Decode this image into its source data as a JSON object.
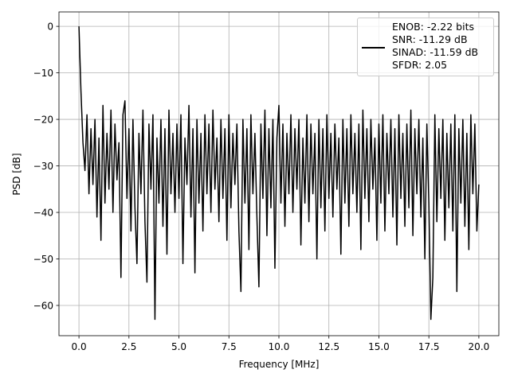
{
  "chart_data": {
    "type": "line",
    "xlabel": "Frequency [MHz]",
    "ylabel": "PSD [dB]",
    "xlim": [
      -1,
      21
    ],
    "ylim": [
      -66.5,
      3.1
    ],
    "xticks": [
      {
        "value": 0,
        "label": "0.0"
      },
      2.5,
      {
        "value": 5,
        "label": "5.0"
      },
      7.5,
      {
        "value": 10,
        "label": "10.0"
      },
      12.5,
      {
        "value": 15,
        "label": "15.0"
      },
      17.5,
      {
        "value": 20,
        "label": "20.0"
      }
    ],
    "yticks": [
      0,
      {
        "value": -10,
        "label": "−10"
      },
      {
        "value": -20,
        "label": "−20"
      },
      {
        "value": -30,
        "label": "−30"
      },
      {
        "value": -40,
        "label": "−40"
      },
      {
        "value": -50,
        "label": "−50"
      },
      {
        "value": -60,
        "label": "−60"
      }
    ],
    "grid": true,
    "legend": "upper right",
    "x": [
      0,
      0.1,
      0.2,
      0.3,
      0.4,
      0.5,
      0.6,
      0.7,
      0.8,
      0.9,
      1,
      1.1,
      1.2,
      1.3,
      1.4,
      1.5,
      1.6,
      1.7,
      1.8,
      1.9,
      2,
      2.1,
      2.2,
      2.3,
      2.4,
      2.5,
      2.6,
      2.7,
      2.8,
      2.9,
      3,
      3.1,
      3.2,
      3.3,
      3.4,
      3.5,
      3.6,
      3.7,
      3.8,
      3.9,
      4,
      4.1,
      4.2,
      4.3,
      4.4,
      4.5,
      4.6,
      4.7,
      4.8,
      4.9,
      5,
      5.1,
      5.2,
      5.3,
      5.4,
      5.5,
      5.6,
      5.7,
      5.8,
      5.9,
      6,
      6.1,
      6.2,
      6.3,
      6.4,
      6.5,
      6.6,
      6.7,
      6.8,
      6.9,
      7,
      7.1,
      7.2,
      7.3,
      7.4,
      7.5,
      7.6,
      7.7,
      7.8,
      7.9,
      8,
      8.1,
      8.2,
      8.3,
      8.4,
      8.5,
      8.6,
      8.7,
      8.8,
      8.9,
      9,
      9.1,
      9.2,
      9.3,
      9.4,
      9.5,
      9.6,
      9.7,
      9.8,
      9.9,
      10,
      10.1,
      10.2,
      10.3,
      10.4,
      10.5,
      10.6,
      10.7,
      10.8,
      10.9,
      11,
      11.1,
      11.2,
      11.3,
      11.4,
      11.5,
      11.6,
      11.7,
      11.8,
      11.9,
      12,
      12.1,
      12.2,
      12.3,
      12.4,
      12.5,
      12.6,
      12.7,
      12.8,
      12.9,
      13,
      13.1,
      13.2,
      13.3,
      13.4,
      13.5,
      13.6,
      13.7,
      13.8,
      13.9,
      14,
      14.1,
      14.2,
      14.3,
      14.4,
      14.5,
      14.6,
      14.7,
      14.8,
      14.9,
      15,
      15.1,
      15.2,
      15.3,
      15.4,
      15.5,
      15.6,
      15.7,
      15.8,
      15.9,
      16,
      16.1,
      16.2,
      16.3,
      16.4,
      16.5,
      16.6,
      16.7,
      16.8,
      16.9,
      17,
      17.1,
      17.2,
      17.3,
      17.4,
      17.5,
      17.6,
      17.7,
      17.8,
      17.9,
      18,
      18.1,
      18.2,
      18.3,
      18.4,
      18.5,
      18.6,
      18.7,
      18.8,
      18.9,
      19,
      19.1,
      19.2,
      19.3,
      19.4,
      19.5,
      19.6,
      19.7,
      19.8,
      19.9,
      20
    ],
    "series": [
      {
        "name": "ENOB: -2.22 bits\nSNR: -11.29 dB\nSINAD: -11.59 dB\nSFDR: 2.05",
        "color": "#000000",
        "values": [
          0,
          -14,
          -25,
          -31,
          -19,
          -36,
          -22,
          -34,
          -20,
          -41,
          -24,
          -46,
          -17,
          -38,
          -23,
          -35,
          -18,
          -40,
          -21,
          -33,
          -25,
          -54,
          -19,
          -16,
          -37,
          -22,
          -44,
          -20,
          -39,
          -51,
          -23,
          -36,
          -18,
          -42,
          -55,
          -21,
          -35,
          -19,
          -63,
          -24,
          -38,
          -20,
          -43,
          -22,
          -49,
          -18,
          -36,
          -23,
          -40,
          -21,
          -37,
          -19,
          -51,
          -24,
          -34,
          -17,
          -41,
          -22,
          -53,
          -20,
          -38,
          -23,
          -44,
          -19,
          -36,
          -21,
          -40,
          -18,
          -35,
          -24,
          -42,
          -20,
          -37,
          -22,
          -46,
          -19,
          -39,
          -23,
          -34,
          -21,
          -44,
          -57,
          -20,
          -38,
          -22,
          -48,
          -19,
          -36,
          -23,
          -41,
          -56,
          -21,
          -37,
          -18,
          -45,
          -22,
          -39,
          -20,
          -52,
          -24,
          -17,
          -38,
          -21,
          -43,
          -23,
          -36,
          -19,
          -40,
          -22,
          -35,
          -20,
          -47,
          -24,
          -38,
          -19,
          -42,
          -21,
          -36,
          -23,
          -50,
          -20,
          -39,
          -22,
          -44,
          -19,
          -37,
          -23,
          -41,
          -21,
          -35,
          -24,
          -49,
          -20,
          -38,
          -22,
          -43,
          -19,
          -36,
          -23,
          -40,
          -21,
          -48,
          -18,
          -37,
          -22,
          -42,
          -20,
          -35,
          -24,
          -46,
          -21,
          -38,
          -19,
          -44,
          -23,
          -36,
          -20,
          -41,
          -22,
          -47,
          -19,
          -37,
          -23,
          -43,
          -21,
          -39,
          -18,
          -45,
          -22,
          -36,
          -20,
          -41,
          -24,
          -50,
          -21,
          -38,
          -63,
          -54,
          -19,
          -42,
          -22,
          -37,
          -20,
          -46,
          -23,
          -39,
          -21,
          -44,
          -19,
          -57,
          -22,
          -38,
          -20,
          -43,
          -23,
          -48,
          -19,
          -36,
          -21,
          -44,
          -34
        ]
      }
    ]
  }
}
